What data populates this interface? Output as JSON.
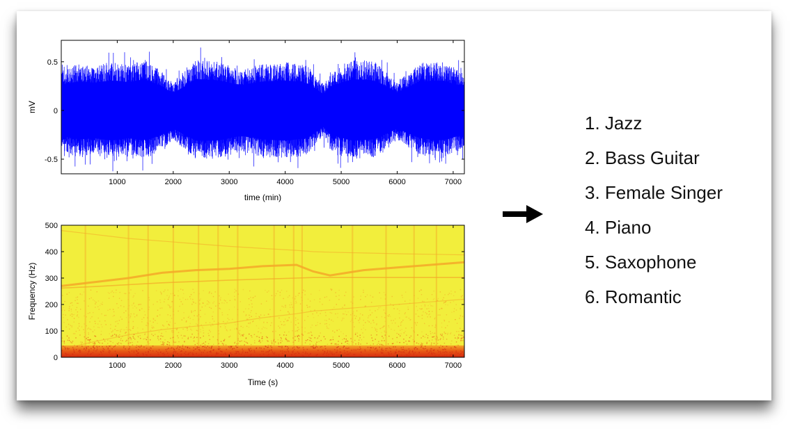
{
  "chart_data": [
    {
      "type": "line",
      "xlabel": "time (min)",
      "ylabel": "mV",
      "xlim": [
        0,
        7200
      ],
      "ylim": [
        -0.65,
        0.72
      ],
      "xticks": [
        1000,
        2000,
        3000,
        4000,
        5000,
        6000,
        7000
      ],
      "yticks": [
        -0.5,
        0,
        0.5
      ],
      "ytick_labels": [
        "-0.5",
        "0",
        "0.5"
      ],
      "grid": false,
      "series": [
        {
          "color": "#0000ff",
          "envelope": {
            "x": [
              0,
              300,
              600,
              900,
              1200,
              1500,
              1800,
              2000,
              2400,
              2800,
              3200,
              3600,
              4000,
              4400,
              4700,
              4800,
              5200,
              5600,
              6000,
              6400,
              6800,
              7100
            ],
            "upper": [
              0.42,
              0.48,
              0.46,
              0.5,
              0.47,
              0.52,
              0.4,
              0.28,
              0.52,
              0.5,
              0.42,
              0.48,
              0.5,
              0.46,
              0.26,
              0.4,
              0.52,
              0.5,
              0.3,
              0.48,
              0.5,
              0.42
            ],
            "lower": [
              -0.42,
              -0.48,
              -0.46,
              -0.5,
              -0.46,
              -0.5,
              -0.4,
              -0.3,
              -0.5,
              -0.5,
              -0.42,
              -0.48,
              -0.5,
              -0.46,
              -0.26,
              -0.4,
              -0.5,
              -0.48,
              -0.3,
              -0.46,
              -0.5,
              -0.42
            ]
          }
        }
      ]
    },
    {
      "type": "heatmap",
      "xlabel": "Time (s)",
      "ylabel": "Frequency (Hz)",
      "xlim": [
        0,
        7200
      ],
      "ylim": [
        0,
        500
      ],
      "xticks": [
        1000,
        2000,
        3000,
        4000,
        5000,
        6000,
        7000
      ],
      "yticks": [
        0,
        100,
        200,
        300,
        400,
        500
      ],
      "grid": false,
      "colormap": [
        "#f5f034",
        "#f4a828",
        "#e85c16",
        "#d42a10"
      ],
      "background_color": "#f2ee3c",
      "low_band_hz": [
        0,
        45
      ],
      "harmonic_lines": {
        "x": [
          0,
          600,
          1200,
          1800,
          2400,
          3000,
          3600,
          4200,
          4500,
          4800,
          5400,
          6000,
          6600,
          7200
        ],
        "h1": [
          270,
          285,
          300,
          320,
          330,
          335,
          345,
          350,
          325,
          310,
          330,
          340,
          350,
          360
        ],
        "h2": [
          262,
          268,
          275,
          282,
          287,
          292,
          296,
          300,
          302,
          302,
          302,
          302,
          302,
          302
        ],
        "h3": [
          480,
          465,
          450,
          440,
          430,
          420,
          412,
          405,
          400,
          398,
          395,
          392,
          390,
          388
        ],
        "h4": [
          30,
          60,
          85,
          105,
          118,
          130,
          150,
          165,
          175,
          180,
          190,
          200,
          210,
          220
        ]
      },
      "vertical_streaks_s": [
        430,
        1200,
        1550,
        2000,
        2450,
        2800,
        3150,
        3800,
        4150,
        4300,
        5200,
        5800,
        6300,
        6700
      ]
    }
  ],
  "arrow": {
    "icon": "right-arrow-icon",
    "color": "#000000"
  },
  "labels": [
    "1. Jazz",
    "2. Bass Guitar",
    "3. Female Singer",
    "4. Piano",
    "5. Saxophone",
    "6. Romantic"
  ]
}
